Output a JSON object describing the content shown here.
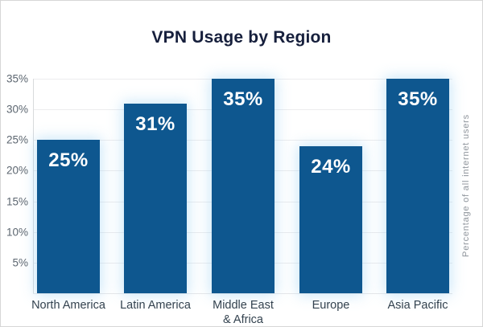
{
  "page": {
    "background": "#ffffff",
    "border_color": "#d6d6d6"
  },
  "chart_data": {
    "type": "bar",
    "title": "VPN Usage by Region",
    "categories": [
      "North America",
      "Latin America",
      "Middle East\n& Africa",
      "Europe",
      "Asia Pacific"
    ],
    "values": [
      25,
      31,
      35,
      24,
      35
    ],
    "bar_labels": [
      "25%",
      "31%",
      "35%",
      "24%",
      "35%"
    ],
    "ylabel_right": "Percentage of all internet users",
    "yticks": [
      {
        "value": 35,
        "label": "35%"
      },
      {
        "value": 30,
        "label": "30%"
      },
      {
        "value": 25,
        "label": "25%"
      },
      {
        "value": 20,
        "label": "20%"
      },
      {
        "value": 15,
        "label": "15%"
      },
      {
        "value": 10,
        "label": "10%"
      },
      {
        "value": 5,
        "label": "5%"
      }
    ],
    "ylim": [
      0,
      35
    ],
    "grid": "horizontal",
    "legend": "none",
    "colors": {
      "bar": "#0E578F",
      "bar_label": "#ffffff",
      "title": "#161F3C",
      "xtick": "#33424F",
      "ytick": "#5C6670",
      "ylabel_right": "#8D949B",
      "gridline": "#ECECEE",
      "baseline": "#E7E7E9",
      "axis_line": "#D8DADC"
    }
  }
}
